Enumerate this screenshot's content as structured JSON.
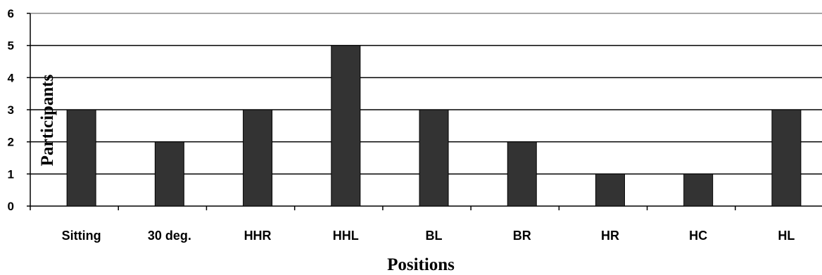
{
  "chart_data": {
    "type": "bar",
    "categories": [
      "Sitting",
      "30 deg.",
      "HHR",
      "HHL",
      "BL",
      "BR",
      "HR",
      "HC",
      "HL"
    ],
    "series": [
      {
        "values": [
          3,
          2,
          3,
          5,
          3,
          2,
          1,
          1,
          3
        ]
      }
    ],
    "xlabel": "Positions",
    "ylabel": "Participants",
    "ylim": [
      0,
      6
    ],
    "yticks": [
      "0",
      "1",
      "2",
      "3",
      "4",
      "5",
      "6"
    ],
    "grid": true,
    "bar_color": "#333333",
    "legend": "none"
  }
}
